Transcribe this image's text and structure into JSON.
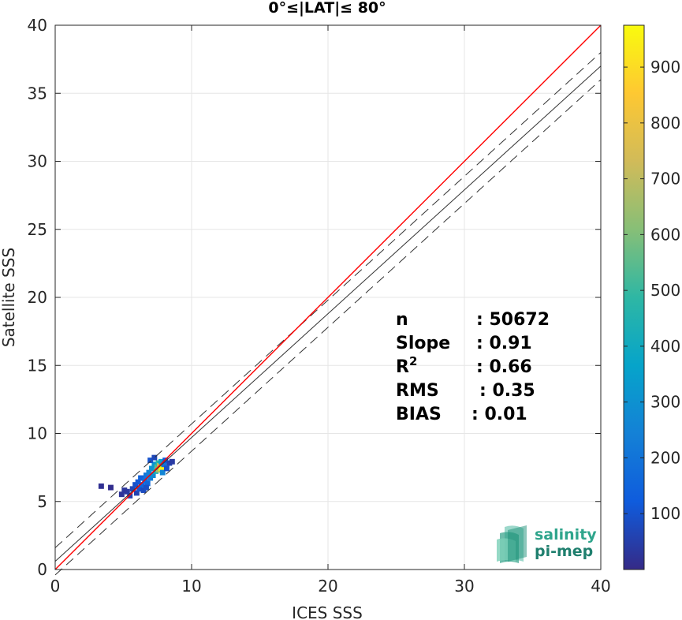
{
  "chart_data": {
    "type": "scatter",
    "title": "0°≤|LAT|≤ 80°",
    "xlabel": "ICES SSS",
    "ylabel": "Satellite SSS",
    "xlim": [
      0,
      40
    ],
    "ylim": [
      0,
      40
    ],
    "xticks": [
      0,
      10,
      20,
      30,
      40
    ],
    "yticks": [
      0,
      5,
      10,
      15,
      20,
      25,
      30,
      35,
      40
    ],
    "grid": true,
    "density_points": [
      {
        "x": 3.3,
        "y": 6.2,
        "count": 15
      },
      {
        "x": 4.0,
        "y": 6.1,
        "count": 10
      },
      {
        "x": 4.8,
        "y": 5.6,
        "count": 25
      },
      {
        "x": 5.2,
        "y": 5.8,
        "count": 40
      },
      {
        "x": 5.4,
        "y": 5.5,
        "count": 50
      },
      {
        "x": 5.6,
        "y": 6.0,
        "count": 70
      },
      {
        "x": 5.8,
        "y": 6.3,
        "count": 90
      },
      {
        "x": 5.9,
        "y": 5.7,
        "count": 60
      },
      {
        "x": 6.0,
        "y": 6.5,
        "count": 110
      },
      {
        "x": 6.1,
        "y": 6.0,
        "count": 100
      },
      {
        "x": 6.2,
        "y": 6.8,
        "count": 140
      },
      {
        "x": 6.3,
        "y": 6.3,
        "count": 150
      },
      {
        "x": 6.4,
        "y": 5.9,
        "count": 80
      },
      {
        "x": 6.5,
        "y": 6.6,
        "count": 180
      },
      {
        "x": 6.6,
        "y": 7.0,
        "count": 200
      },
      {
        "x": 6.7,
        "y": 6.4,
        "count": 160
      },
      {
        "x": 6.8,
        "y": 7.2,
        "count": 250
      },
      {
        "x": 6.9,
        "y": 6.8,
        "count": 230
      },
      {
        "x": 7.0,
        "y": 7.5,
        "count": 300
      },
      {
        "x": 7.1,
        "y": 7.0,
        "count": 280
      },
      {
        "x": 7.2,
        "y": 7.8,
        "count": 320
      },
      {
        "x": 7.3,
        "y": 7.3,
        "count": 420
      },
      {
        "x": 7.4,
        "y": 7.6,
        "count": 550
      },
      {
        "x": 7.5,
        "y": 7.9,
        "count": 480
      },
      {
        "x": 7.5,
        "y": 7.4,
        "count": 650
      },
      {
        "x": 7.6,
        "y": 7.7,
        "count": 780
      },
      {
        "x": 7.7,
        "y": 7.5,
        "count": 960
      },
      {
        "x": 7.7,
        "y": 8.0,
        "count": 350
      },
      {
        "x": 7.8,
        "y": 7.2,
        "count": 260
      },
      {
        "x": 7.9,
        "y": 7.8,
        "count": 190
      },
      {
        "x": 8.0,
        "y": 8.1,
        "count": 120
      },
      {
        "x": 8.1,
        "y": 7.5,
        "count": 90
      },
      {
        "x": 8.3,
        "y": 7.9,
        "count": 60
      },
      {
        "x": 8.5,
        "y": 8.0,
        "count": 40
      },
      {
        "x": 6.9,
        "y": 8.1,
        "count": 100
      },
      {
        "x": 7.2,
        "y": 8.3,
        "count": 70
      },
      {
        "x": 6.6,
        "y": 6.1,
        "count": 90
      },
      {
        "x": 5.0,
        "y": 5.9,
        "count": 30
      }
    ],
    "identity_line": {
      "slope": 1,
      "intercept": 0,
      "color": "#ff0000"
    },
    "fit_line": {
      "slope": 0.91,
      "intercept": 0.6,
      "color": "#333333"
    },
    "fit_bounds": {
      "offset": 1.0,
      "style": "dashed",
      "color": "#333333"
    },
    "stats": [
      {
        "label": "n",
        "value": ": 50672"
      },
      {
        "label": "Slope",
        "value": ": 0.91"
      },
      {
        "label": "R",
        "sup": "2",
        "value": ": 0.66"
      },
      {
        "label": "RMS",
        "value": ": 0.35"
      },
      {
        "label": "BIAS",
        "value": ": 0.01"
      }
    ],
    "colorbar": {
      "min": 0,
      "max": 975,
      "ticks": [
        100,
        200,
        300,
        400,
        500,
        600,
        700,
        800,
        900
      ],
      "colormap": "parula",
      "colormap_stops": [
        "#352a87",
        "#0f5cdd",
        "#1481d6",
        "#06a4ca",
        "#2eb7a4",
        "#87bf77",
        "#d1bb59",
        "#fec832",
        "#f9fb0e"
      ]
    }
  },
  "logo": {
    "line1": "salinity",
    "line2": "pi-mep"
  }
}
